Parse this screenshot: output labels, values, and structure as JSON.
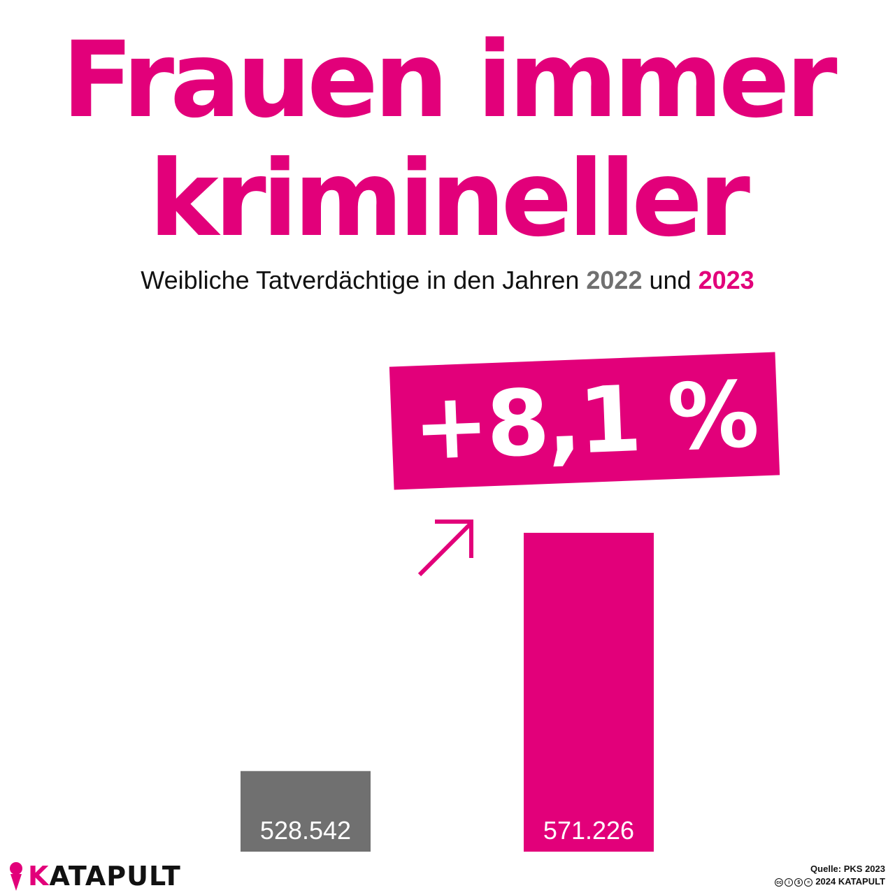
{
  "title": "Frauen immer krimineller",
  "subtitle": {
    "prefix": "Weibliche Tatverdächtige in den Jahren",
    "year1": "2022",
    "joiner": "und",
    "year2": "2023"
  },
  "change_label": "+8,1 %",
  "colors": {
    "accent": "#e2007a",
    "bar_2022": "#707070",
    "bar_2023": "#e2007a",
    "text": "#111111"
  },
  "chart_data": {
    "type": "bar",
    "categories": [
      "2022",
      "2023"
    ],
    "values": [
      528542,
      571226
    ],
    "value_labels": [
      "528.542",
      "571.226"
    ],
    "bar_colors": [
      "#707070",
      "#e2007a"
    ],
    "title": "Frauen immer krimineller",
    "subtitle": "Weibliche Tatverdächtige in den Jahren 2022 und 2023",
    "annotation": "+8,1 %",
    "ylim": [
      0,
      571226
    ],
    "grid": false,
    "legend": "none"
  },
  "footer": {
    "brand_initial": "K",
    "brand_rest": "ATAPULT",
    "source": "Quelle: PKS 2023",
    "copyright": "2024 KATAPULT",
    "license_icons": [
      "cc-icon",
      "by-icon",
      "nc-icon",
      "nd-icon"
    ]
  }
}
